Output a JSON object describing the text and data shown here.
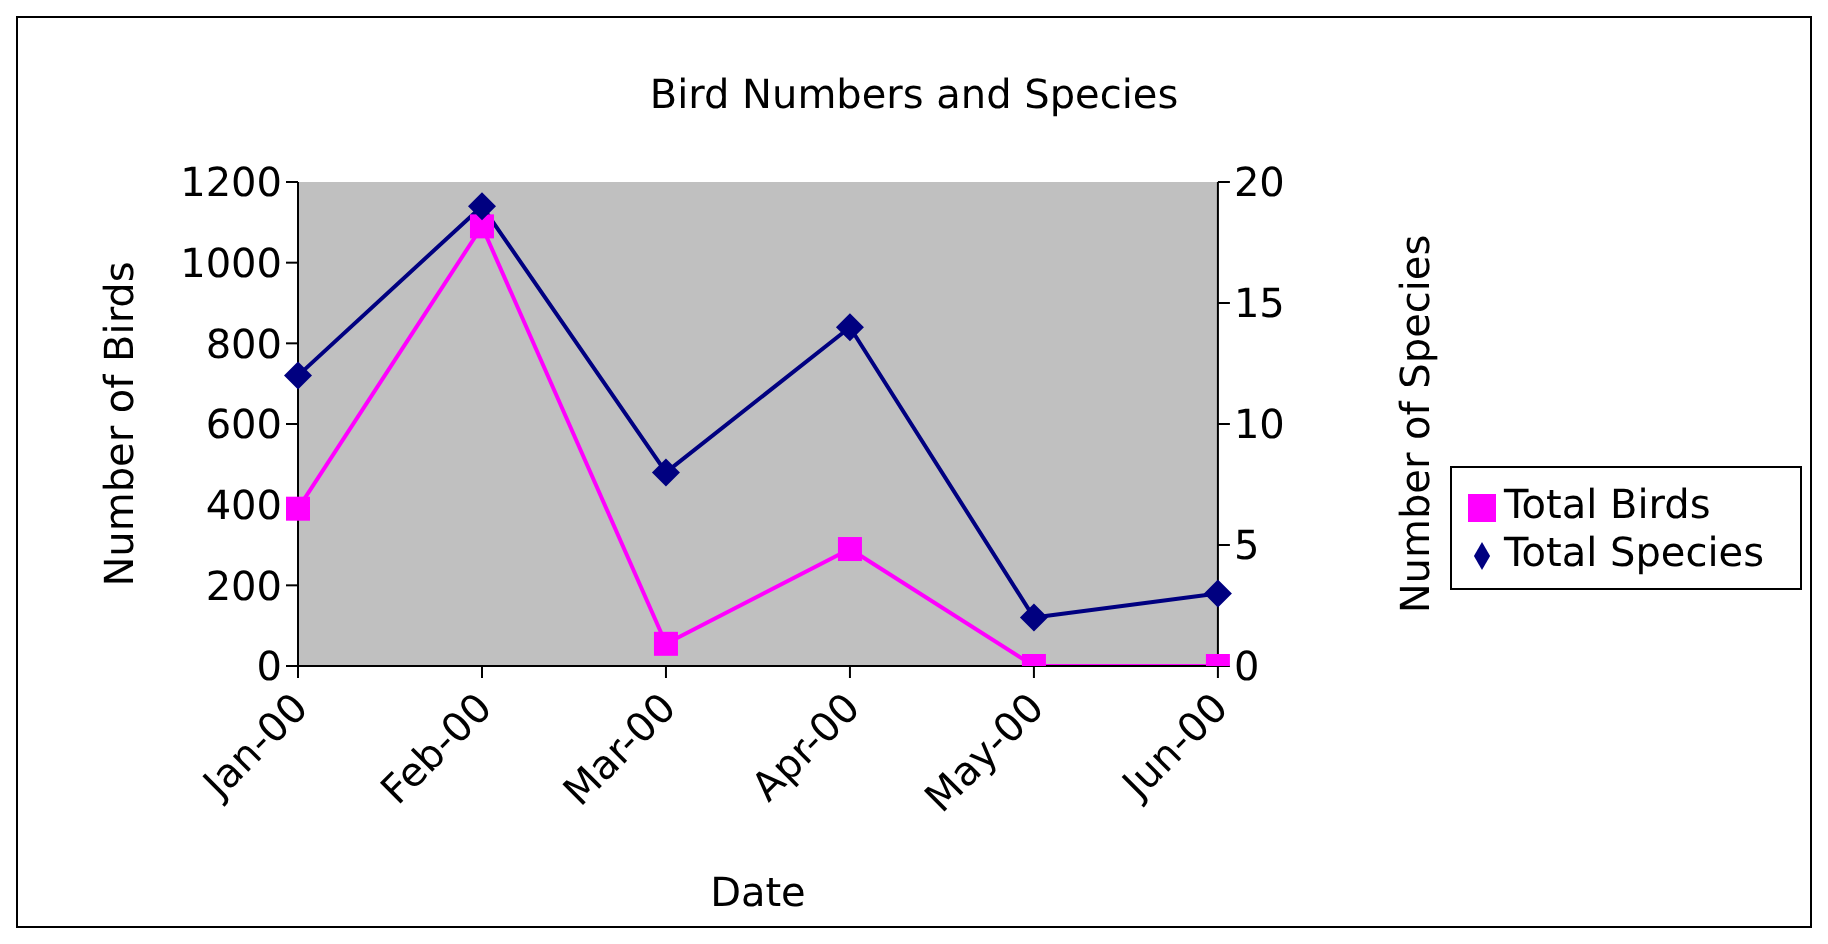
{
  "chart_data": {
    "type": "line",
    "title": "Bird Numbers and Species",
    "xlabel": "Date",
    "ylabel": "Number of Birds",
    "y2label": "Number of Species",
    "categories": [
      "Jan-00",
      "Feb-00",
      "Mar-00",
      "Apr-00",
      "May-00",
      "Jun-00"
    ],
    "series": [
      {
        "name": "Total Birds",
        "color": "#ff00ff",
        "marker": "square",
        "values": [
          390,
          1090,
          55,
          290,
          0,
          0
        ]
      },
      {
        "name": "Total Species",
        "color": "#000080",
        "marker": "diamond",
        "axis": "y2",
        "values": [
          12,
          19,
          8,
          14,
          2,
          3
        ]
      }
    ],
    "ylim": [
      0,
      1200
    ],
    "yticks": [
      0,
      200,
      400,
      600,
      800,
      1000,
      1200
    ],
    "y2lim": [
      0,
      20
    ],
    "y2ticks": [
      0,
      5,
      10,
      15,
      20
    ],
    "legend": "right"
  }
}
